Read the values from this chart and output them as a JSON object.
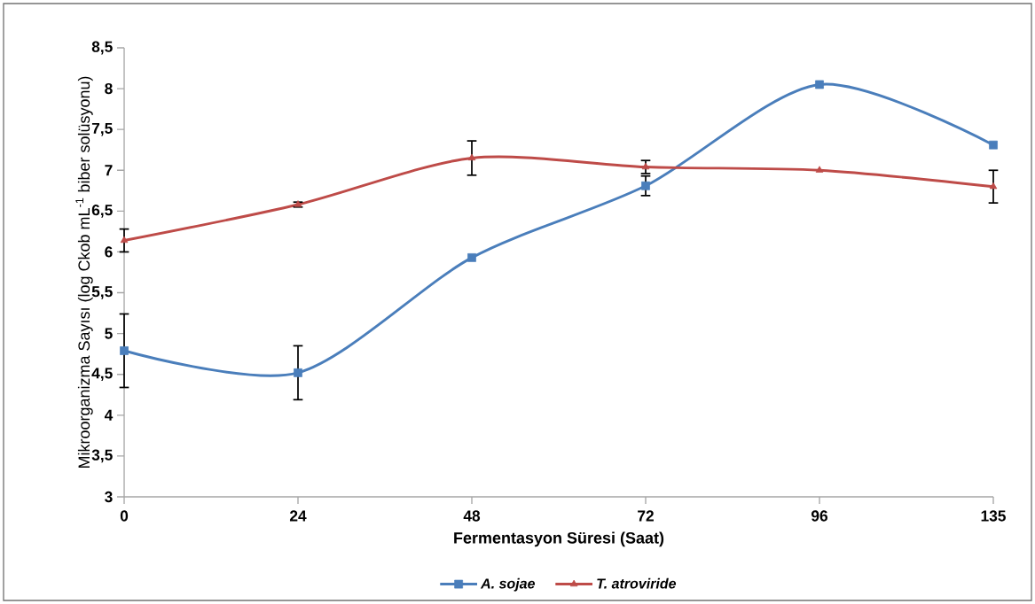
{
  "chart_data": {
    "type": "line",
    "xlabel": "Fermentasyon Süresi (Saat)",
    "ylabel": "Mikroorganizma Sayısı  (log Ckob mL$^{-1}$ biber solüsyonu)",
    "categories": [
      "0",
      "24",
      "48",
      "72",
      "96",
      "135"
    ],
    "series": [
      {
        "name": "A. sojae",
        "color": "#4a7ebb",
        "marker": "square",
        "values": [
          4.79,
          4.52,
          5.93,
          6.81,
          8.05,
          7.31
        ],
        "errors": [
          0.45,
          0.33,
          null,
          0.12,
          null,
          null
        ]
      },
      {
        "name": "T. atroviride",
        "color": "#be4b48",
        "marker": "triangle",
        "values": [
          6.14,
          6.58,
          7.15,
          7.04,
          7.0,
          6.8
        ],
        "errors": [
          0.14,
          0.03,
          0.21,
          0.08,
          null,
          0.2
        ]
      }
    ],
    "ylim": [
      3,
      8.5
    ],
    "yticks": [
      3,
      {
        "value": 3.5,
        "label": "3,5"
      },
      4,
      {
        "value": 4.5,
        "label": "4,5"
      },
      5,
      {
        "value": 5.5,
        "label": "5,5"
      },
      6,
      {
        "value": 6.5,
        "label": "6,5"
      },
      7,
      {
        "value": 7.5,
        "label": "7,5"
      },
      8,
      {
        "value": 8.5,
        "label": "8,5"
      }
    ],
    "legend": "bottom",
    "line_style": "solid"
  }
}
